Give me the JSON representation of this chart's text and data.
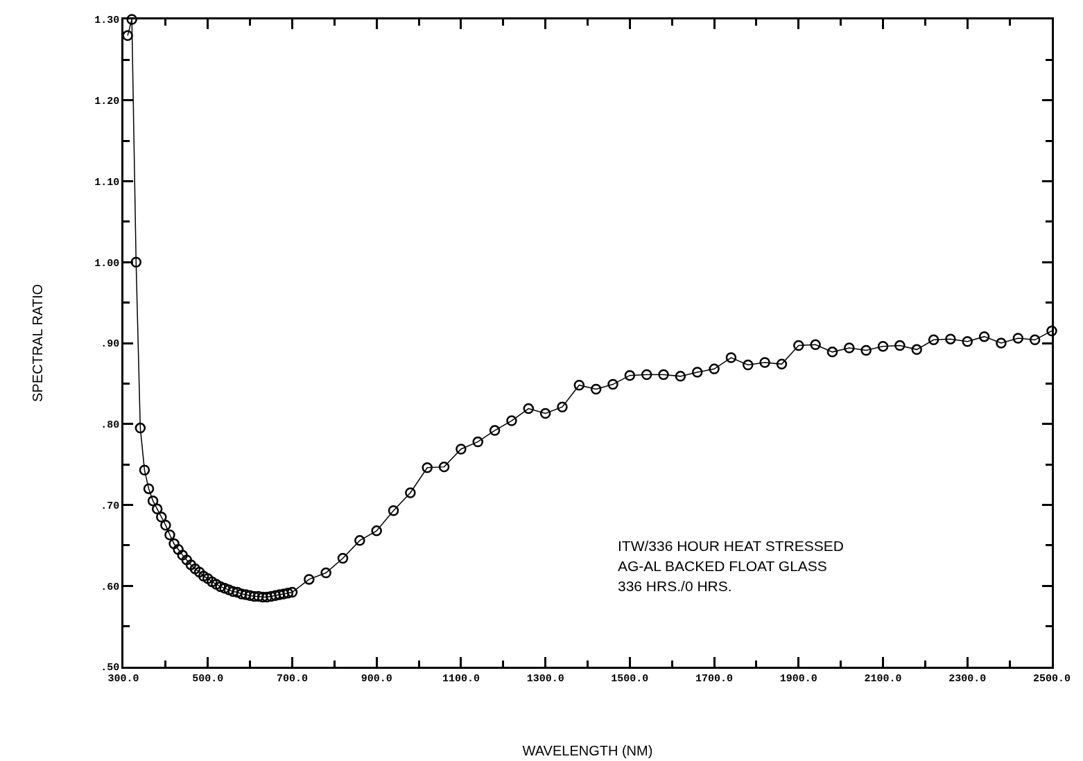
{
  "chart_data": {
    "type": "line",
    "xlabel": "WAVELENGTH (NM)",
    "ylabel": "SPECTRAL RATIO",
    "x": [
      310,
      320,
      330,
      340,
      350,
      360,
      370,
      380,
      390,
      400,
      410,
      420,
      430,
      440,
      450,
      460,
      470,
      480,
      490,
      500,
      510,
      520,
      530,
      540,
      550,
      560,
      570,
      580,
      590,
      600,
      610,
      620,
      630,
      640,
      650,
      660,
      670,
      680,
      690,
      700,
      740,
      780,
      820,
      860,
      900,
      940,
      980,
      1020,
      1060,
      1100,
      1140,
      1180,
      1220,
      1260,
      1300,
      1340,
      1380,
      1420,
      1460,
      1500,
      1540,
      1580,
      1620,
      1660,
      1700,
      1740,
      1780,
      1820,
      1860,
      1900,
      1940,
      1980,
      2020,
      2060,
      2100,
      2140,
      2180,
      2220,
      2260,
      2300,
      2340,
      2380,
      2420,
      2460,
      2500
    ],
    "series": [
      {
        "color": "#000000",
        "values": [
          1.28,
          1.3,
          1.0,
          0.795,
          0.743,
          0.72,
          0.705,
          0.695,
          0.685,
          0.675,
          0.663,
          0.652,
          0.645,
          0.638,
          0.632,
          0.626,
          0.621,
          0.617,
          0.612,
          0.609,
          0.605,
          0.602,
          0.599,
          0.597,
          0.595,
          0.593,
          0.592,
          0.59,
          0.589,
          0.588,
          0.587,
          0.587,
          0.586,
          0.586,
          0.587,
          0.588,
          0.589,
          0.59,
          0.591,
          0.592,
          0.608,
          0.616,
          0.634,
          0.656,
          0.668,
          0.693,
          0.715,
          0.746,
          0.747,
          0.769,
          0.778,
          0.792,
          0.804,
          0.819,
          0.813,
          0.821,
          0.848,
          0.843,
          0.849,
          0.86,
          0.861,
          0.861,
          0.859,
          0.864,
          0.868,
          0.882,
          0.873,
          0.876,
          0.874,
          0.897,
          0.898,
          0.889,
          0.894,
          0.891,
          0.896,
          0.897,
          0.892,
          0.904,
          0.905,
          0.902,
          0.908,
          0.9,
          0.906,
          0.904,
          0.915
        ]
      }
    ],
    "xlim": [
      300,
      2500
    ],
    "xticks": [
      {
        "value": 300,
        "label": "300.0"
      },
      {
        "value": 400,
        "label": null
      },
      {
        "value": 500,
        "label": "500.0"
      },
      {
        "value": 600,
        "label": null
      },
      {
        "value": 700,
        "label": "700.0"
      },
      {
        "value": 800,
        "label": null
      },
      {
        "value": 900,
        "label": "900.0"
      },
      {
        "value": 1000,
        "label": null
      },
      {
        "value": 1100,
        "label": "1100.0"
      },
      {
        "value": 1200,
        "label": null
      },
      {
        "value": 1300,
        "label": "1300.0"
      },
      {
        "value": 1400,
        "label": null
      },
      {
        "value": 1500,
        "label": "1500.0"
      },
      {
        "value": 1600,
        "label": null
      },
      {
        "value": 1700,
        "label": "1700.0"
      },
      {
        "value": 1800,
        "label": null
      },
      {
        "value": 1900,
        "label": "1900.0"
      },
      {
        "value": 2000,
        "label": null
      },
      {
        "value": 2100,
        "label": "2100.0"
      },
      {
        "value": 2200,
        "label": null
      },
      {
        "value": 2300,
        "label": "2300.0"
      },
      {
        "value": 2400,
        "label": null
      },
      {
        "value": 2500,
        "label": "2500.0"
      }
    ],
    "ylim": [
      0.5,
      1.3
    ],
    "yticks": [
      {
        "value": 0.5,
        "label": ".50"
      },
      {
        "value": 0.55,
        "label": null
      },
      {
        "value": 0.6,
        "label": ".60"
      },
      {
        "value": 0.65,
        "label": null
      },
      {
        "value": 0.7,
        "label": ".70"
      },
      {
        "value": 0.75,
        "label": null
      },
      {
        "value": 0.8,
        "label": ".80"
      },
      {
        "value": 0.85,
        "label": null
      },
      {
        "value": 0.9,
        "label": ".90"
      },
      {
        "value": 0.95,
        "label": null
      },
      {
        "value": 1.0,
        "label": "1.00"
      },
      {
        "value": 1.05,
        "label": null
      },
      {
        "value": 1.1,
        "label": "1.10"
      },
      {
        "value": 1.15,
        "label": null
      },
      {
        "value": 1.2,
        "label": "1.20"
      },
      {
        "value": 1.25,
        "label": null
      },
      {
        "value": 1.3,
        "label": "1.30"
      }
    ],
    "annotations": [
      "ITW/336 HOUR HEAT STRESSED",
      "AG-AL BACKED FLOAT GLASS",
      "336 HRS./0 HRS."
    ],
    "marker": "circle",
    "line_style": "solid",
    "grid": false
  }
}
